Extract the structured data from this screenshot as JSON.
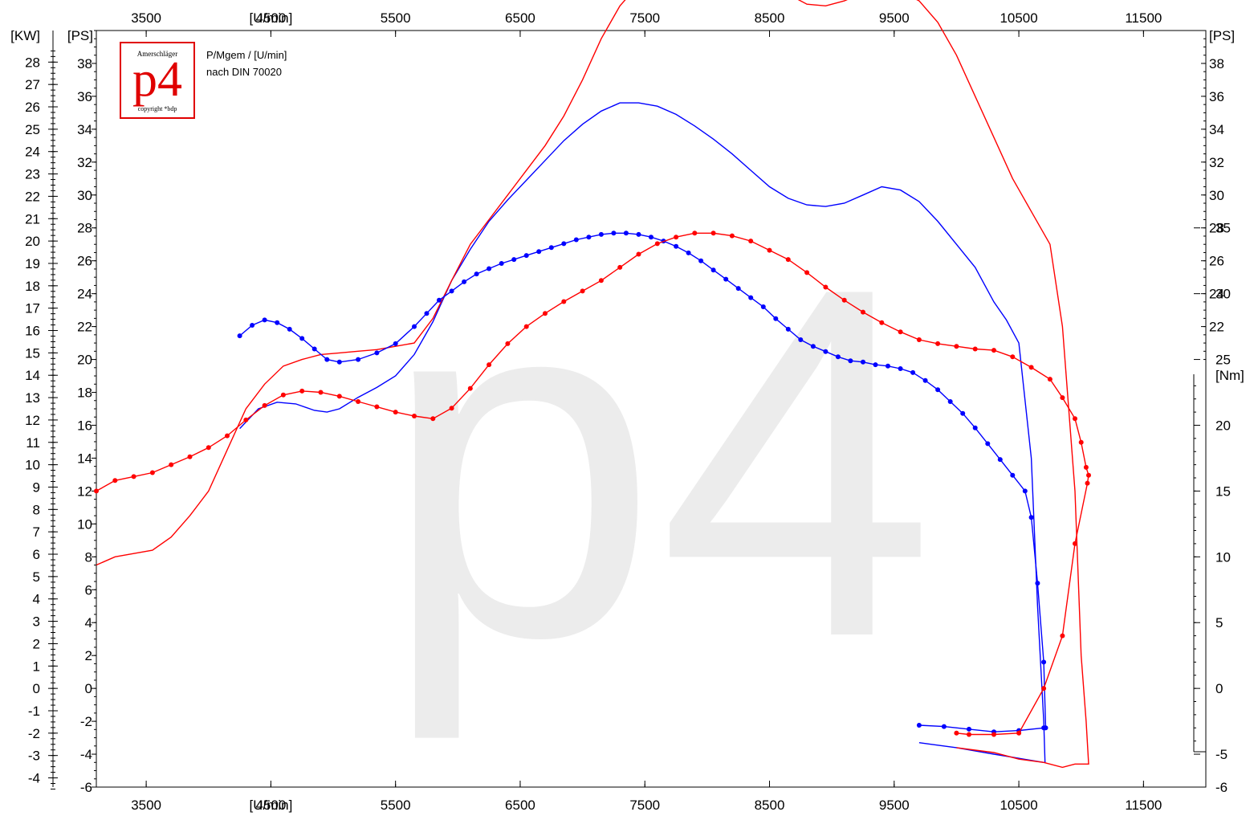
{
  "info": {
    "line1": "P/Mgem / [U/min]",
    "line2": "nach DIN 70020"
  },
  "logo": {
    "top_text": "Amerschläger",
    "mark": "p4",
    "bottom_text": "copyright *bdp",
    "color": "#e00000"
  },
  "watermark": "p4",
  "chart_data": {
    "type": "line",
    "grid": false,
    "x_axis": {
      "unit_label": "[U/min]",
      "tick_labels": [
        "3500",
        "4500",
        "5500",
        "6500",
        "7500",
        "8500",
        "9500",
        "10500",
        "11500"
      ],
      "unit_label_position_value": 4500,
      "range": [
        3100,
        12000
      ]
    },
    "left_axis_kw": {
      "label": "[KW]",
      "ticks": [
        -4,
        -3,
        -2,
        -1,
        0,
        1,
        2,
        3,
        4,
        5,
        6,
        7,
        8,
        9,
        10,
        11,
        12,
        13,
        14,
        15,
        16,
        17,
        18,
        19,
        20,
        21,
        22,
        23,
        24,
        25,
        26,
        27,
        28
      ]
    },
    "left_axis_ps": {
      "label": "[PS]",
      "ticks": [
        -6,
        -4,
        -2,
        0,
        2,
        4,
        6,
        8,
        10,
        12,
        14,
        16,
        18,
        20,
        22,
        24,
        26,
        28,
        30,
        32,
        34,
        36,
        38
      ],
      "range": [
        -6,
        40
      ]
    },
    "right_axis_ps": {
      "label": "[PS]",
      "ticks": [
        22,
        24,
        26,
        28,
        30,
        32,
        34,
        36,
        38
      ]
    },
    "right_axis_nm": {
      "label": "[Nm]",
      "ticks": [
        -6,
        -5,
        0,
        5,
        10,
        15,
        20,
        25,
        30,
        35
      ]
    },
    "colors": {
      "run1": "#0000ff",
      "run2": "#ff0000"
    },
    "series": [
      {
        "kind": "power",
        "color": "#0000ff",
        "x": [
          4250,
          4400,
          4550,
          4700,
          4850,
          4950,
          5050,
          5200,
          5350,
          5500,
          5650,
          5800,
          5950,
          6100,
          6250,
          6400,
          6550,
          6700,
          6850,
          7000,
          7150,
          7300,
          7450,
          7600,
          7750,
          7900,
          8050,
          8200,
          8350,
          8500,
          8650,
          8800,
          8950,
          9100,
          9250,
          9400,
          9550,
          9700,
          9850,
          10000,
          10150,
          10300,
          10400,
          10500,
          10600,
          10650,
          10700,
          10710,
          10715,
          10700,
          10300,
          10000,
          9800,
          9700
        ],
        "y": [
          15.8,
          17.0,
          17.4,
          17.3,
          16.9,
          16.8,
          17.0,
          17.7,
          18.3,
          19.0,
          20.3,
          22.3,
          24.8,
          26.7,
          28.4,
          29.7,
          30.9,
          32.1,
          33.3,
          34.3,
          35.1,
          35.6,
          35.6,
          35.4,
          34.9,
          34.2,
          33.4,
          32.5,
          31.5,
          30.5,
          29.8,
          29.4,
          29.3,
          29.5,
          30.0,
          30.5,
          30.3,
          29.6,
          28.4,
          27.0,
          25.6,
          23.5,
          22.4,
          21.0,
          14.0,
          5.0,
          -2.0,
          -4.5,
          -4.5,
          -4.5,
          -4.0,
          -3.6,
          -3.4,
          -3.3
        ]
      },
      {
        "kind": "power",
        "color": "#ff0000",
        "x": [
          3100,
          3250,
          3400,
          3550,
          3700,
          3850,
          4000,
          4150,
          4300,
          4450,
          4600,
          4750,
          4900,
          5050,
          5200,
          5350,
          5500,
          5650,
          5800,
          5950,
          6100,
          6250,
          6400,
          6550,
          6700,
          6850,
          7000,
          7150,
          7300,
          7450,
          7600,
          7750,
          7900,
          8050,
          8200,
          8350,
          8500,
          8650,
          8800,
          8950,
          9100,
          9250,
          9400,
          9550,
          9700,
          9850,
          10000,
          10150,
          10300,
          10450,
          10600,
          10750,
          10850,
          10950,
          11000,
          11040,
          11060,
          11050,
          10950,
          10850,
          10700,
          10500,
          10300,
          10000
        ],
        "y": [
          7.5,
          8.0,
          8.2,
          8.4,
          9.2,
          10.5,
          12.0,
          14.5,
          17.0,
          18.5,
          19.6,
          20.0,
          20.3,
          20.4,
          20.5,
          20.6,
          20.8,
          21.0,
          22.5,
          24.8,
          27.0,
          28.5,
          30.0,
          31.5,
          33.0,
          34.8,
          37.0,
          39.5,
          41.5,
          42.8,
          44.0,
          45.0,
          45.5,
          45.6,
          45.0,
          44.0,
          43.0,
          42.2,
          41.6,
          41.5,
          41.8,
          42.3,
          42.5,
          42.4,
          41.8,
          40.5,
          38.5,
          36.0,
          33.5,
          31.0,
          29.0,
          27.0,
          22.0,
          12.0,
          2.0,
          -2.0,
          -4.6,
          -4.6,
          -4.6,
          -4.8,
          -4.5,
          -4.3,
          -3.9,
          -3.6
        ]
      },
      {
        "kind": "torque",
        "color": "#0000ff",
        "x": [
          4250,
          4350,
          4450,
          4550,
          4650,
          4750,
          4850,
          4950,
          5050,
          5200,
          5350,
          5500,
          5650,
          5750,
          5850,
          5950,
          6050,
          6150,
          6250,
          6350,
          6450,
          6550,
          6650,
          6750,
          6850,
          6950,
          7050,
          7150,
          7250,
          7350,
          7450,
          7550,
          7650,
          7750,
          7850,
          7950,
          8050,
          8150,
          8250,
          8350,
          8450,
          8550,
          8650,
          8750,
          8850,
          8950,
          9050,
          9150,
          9250,
          9350,
          9450,
          9550,
          9650,
          9750,
          9850,
          9950,
          10050,
          10150,
          10250,
          10350,
          10450,
          10550,
          10600,
          10650,
          10700,
          10715,
          10710,
          10700,
          10500,
          10300,
          10100,
          9900,
          9700
        ],
        "y": [
          26.8,
          27.6,
          28.0,
          27.8,
          27.3,
          26.6,
          25.8,
          25.0,
          24.8,
          25.0,
          25.5,
          26.2,
          27.5,
          28.5,
          29.5,
          30.2,
          30.9,
          31.5,
          31.9,
          32.3,
          32.6,
          32.9,
          33.2,
          33.5,
          33.8,
          34.1,
          34.3,
          34.5,
          34.6,
          34.6,
          34.5,
          34.3,
          34.0,
          33.6,
          33.1,
          32.5,
          31.8,
          31.1,
          30.4,
          29.7,
          29.0,
          28.1,
          27.3,
          26.5,
          26.0,
          25.6,
          25.2,
          24.9,
          24.8,
          24.6,
          24.5,
          24.3,
          24.0,
          23.4,
          22.7,
          21.8,
          20.9,
          19.8,
          18.6,
          17.4,
          16.2,
          15.0,
          13.0,
          8.0,
          2.0,
          -3.0,
          -3.0,
          -3.0,
          -3.2,
          -3.3,
          -3.1,
          -2.9,
          -2.8
        ]
      },
      {
        "kind": "torque",
        "color": "#ff0000",
        "x": [
          3100,
          3250,
          3400,
          3550,
          3700,
          3850,
          4000,
          4150,
          4300,
          4450,
          4600,
          4750,
          4900,
          5050,
          5200,
          5350,
          5500,
          5650,
          5800,
          5950,
          6100,
          6250,
          6400,
          6550,
          6700,
          6850,
          7000,
          7150,
          7300,
          7450,
          7600,
          7750,
          7900,
          8050,
          8200,
          8350,
          8500,
          8650,
          8800,
          8950,
          9100,
          9250,
          9400,
          9550,
          9700,
          9850,
          10000,
          10150,
          10300,
          10450,
          10600,
          10750,
          10850,
          10950,
          11000,
          11040,
          11060,
          11050,
          10950,
          10850,
          10700,
          10500,
          10300,
          10100,
          10000
        ],
        "y": [
          15.0,
          15.8,
          16.1,
          16.4,
          17.0,
          17.6,
          18.3,
          19.2,
          20.4,
          21.5,
          22.3,
          22.6,
          22.5,
          22.2,
          21.8,
          21.4,
          21.0,
          20.7,
          20.5,
          21.3,
          22.8,
          24.6,
          26.2,
          27.5,
          28.5,
          29.4,
          30.2,
          31.0,
          32.0,
          33.0,
          33.8,
          34.3,
          34.6,
          34.6,
          34.4,
          34.0,
          33.3,
          32.6,
          31.6,
          30.5,
          29.5,
          28.6,
          27.8,
          27.1,
          26.5,
          26.2,
          26.0,
          25.8,
          25.7,
          25.2,
          24.4,
          23.5,
          22.1,
          20.5,
          18.7,
          16.8,
          16.2,
          15.6,
          11.0,
          4.0,
          0.0,
          -3.4,
          -3.5,
          -3.5,
          -3.4
        ]
      }
    ]
  }
}
